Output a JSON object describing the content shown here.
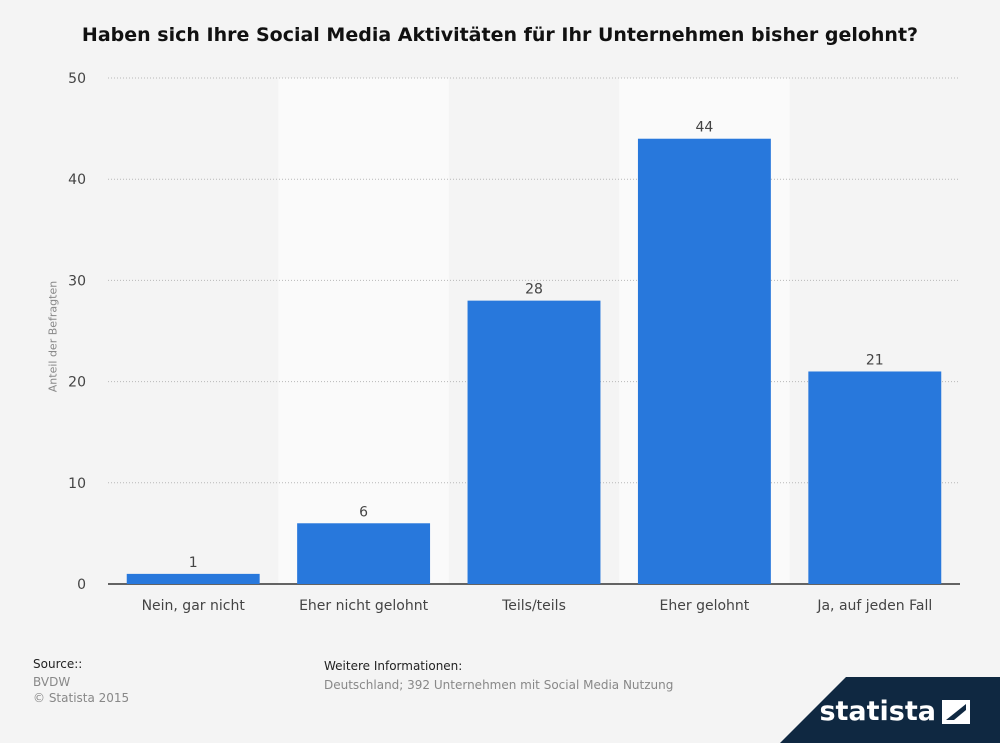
{
  "title": "Haben sich Ihre Social Media Aktivitäten für Ihr Unternehmen bisher gelohnt?",
  "source": {
    "heading": "Source::",
    "lines": [
      "BVDW",
      "© Statista 2015"
    ]
  },
  "info": {
    "heading": "Weitere Informationen:",
    "text": "Deutschland; 392 Unternehmen mit Social Media Nutzung"
  },
  "brand": {
    "name": "statista"
  },
  "colors": {
    "bar": "#2878dc",
    "background": "#f4f4f4",
    "band": "#fafafa",
    "brand_bg": "#0f2841"
  },
  "chart_data": {
    "type": "bar",
    "title": "Haben sich Ihre Social Media Aktivitäten für Ihr Unternehmen bisher gelohnt?",
    "xlabel": "",
    "ylabel": "Anteil der Befragten",
    "categories": [
      "Nein, gar nicht",
      "Eher nicht gelohnt",
      "Teils/teils",
      "Eher gelohnt",
      "Ja, auf jeden Fall"
    ],
    "values": [
      1,
      6,
      28,
      44,
      21
    ],
    "ylim": [
      0,
      50
    ],
    "yticks": [
      0,
      10,
      20,
      30,
      40,
      50
    ],
    "grid": true,
    "data_labels": true
  }
}
